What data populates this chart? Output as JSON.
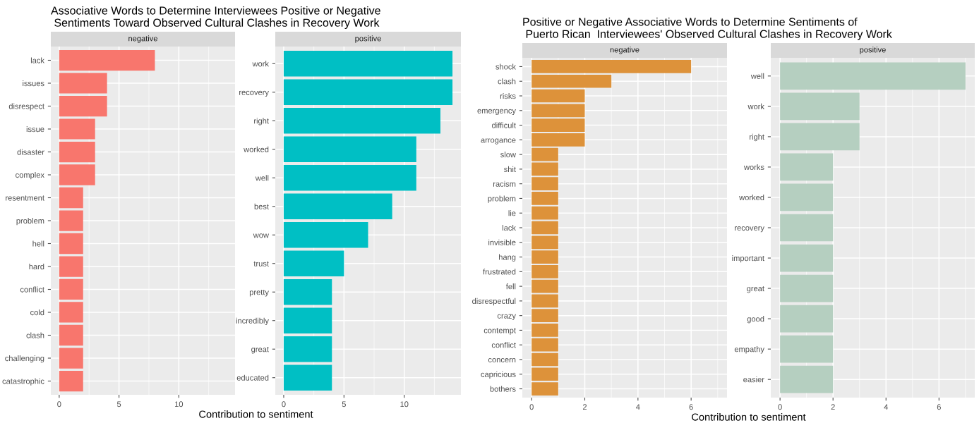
{
  "chart_data": [
    {
      "type": "bar",
      "orientation": "horizontal",
      "title": "Associative Words to Determine Interviewees Positive or Negative\n Sentiments Toward Observed Cultural Clashes in Recovery Work",
      "subtitle": "negative",
      "xlabel": "Contribution to sentiment",
      "categories": [
        "lack",
        "issues",
        "disrespect",
        "issue",
        "disaster",
        "complex",
        "resentment",
        "problem",
        "hell",
        "hard",
        "conflict",
        "cold",
        "clash",
        "challenging",
        "catastrophic"
      ],
      "values": [
        8,
        4,
        4,
        3,
        3,
        3,
        2,
        2,
        2,
        2,
        2,
        2,
        2,
        2,
        2
      ],
      "color": "#f8766d",
      "xlim": [
        -0.7,
        14.7
      ],
      "xticks": [
        0,
        5,
        10
      ],
      "grid": true
    },
    {
      "type": "bar",
      "orientation": "horizontal",
      "subtitle": "positive",
      "categories": [
        "work",
        "recovery",
        "right",
        "worked",
        "well",
        "best",
        "wow",
        "trust",
        "pretty",
        "incredibly",
        "great",
        "educated"
      ],
      "values": [
        14,
        14,
        13,
        11,
        11,
        9,
        7,
        5,
        4,
        4,
        4,
        4
      ],
      "color": "#00bfc4",
      "xlim": [
        -0.7,
        14.7
      ],
      "xticks": [
        0,
        5,
        10
      ],
      "grid": true
    },
    {
      "type": "bar",
      "orientation": "horizontal",
      "title": "Positive or Negative Associative Words to Determine Sentiments of\n Puerto Rican  Interviewees' Observed Cultural Clashes in Recovery Work",
      "subtitle": "negative",
      "xlabel": "Contribution to sentiment",
      "categories": [
        "shock",
        "clash",
        "risks",
        "emergency",
        "difficult",
        "arrogance",
        "slow",
        "shit",
        "racism",
        "problem",
        "lie",
        "lack",
        "invisible",
        "hang",
        "frustrated",
        "fell",
        "disrespectful",
        "crazy",
        "contempt",
        "conflict",
        "concern",
        "capricious",
        "bothers"
      ],
      "values": [
        6,
        3,
        2,
        2,
        2,
        2,
        1,
        1,
        1,
        1,
        1,
        1,
        1,
        1,
        1,
        1,
        1,
        1,
        1,
        1,
        1,
        1,
        1
      ],
      "color": "#dd923a",
      "xlim": [
        -0.35,
        7.35
      ],
      "xticks": [
        0,
        2,
        4,
        6
      ],
      "grid": true
    },
    {
      "type": "bar",
      "orientation": "horizontal",
      "subtitle": "positive",
      "categories": [
        "well",
        "work",
        "right",
        "works",
        "worked",
        "recovery",
        "important",
        "great",
        "good",
        "empathy",
        "easier"
      ],
      "values": [
        7,
        3,
        3,
        2,
        2,
        2,
        2,
        2,
        2,
        2,
        2
      ],
      "color": "#b5cfc0",
      "xlim": [
        -0.35,
        7.35
      ],
      "xticks": [
        0,
        2,
        4,
        6
      ],
      "grid": true
    }
  ]
}
